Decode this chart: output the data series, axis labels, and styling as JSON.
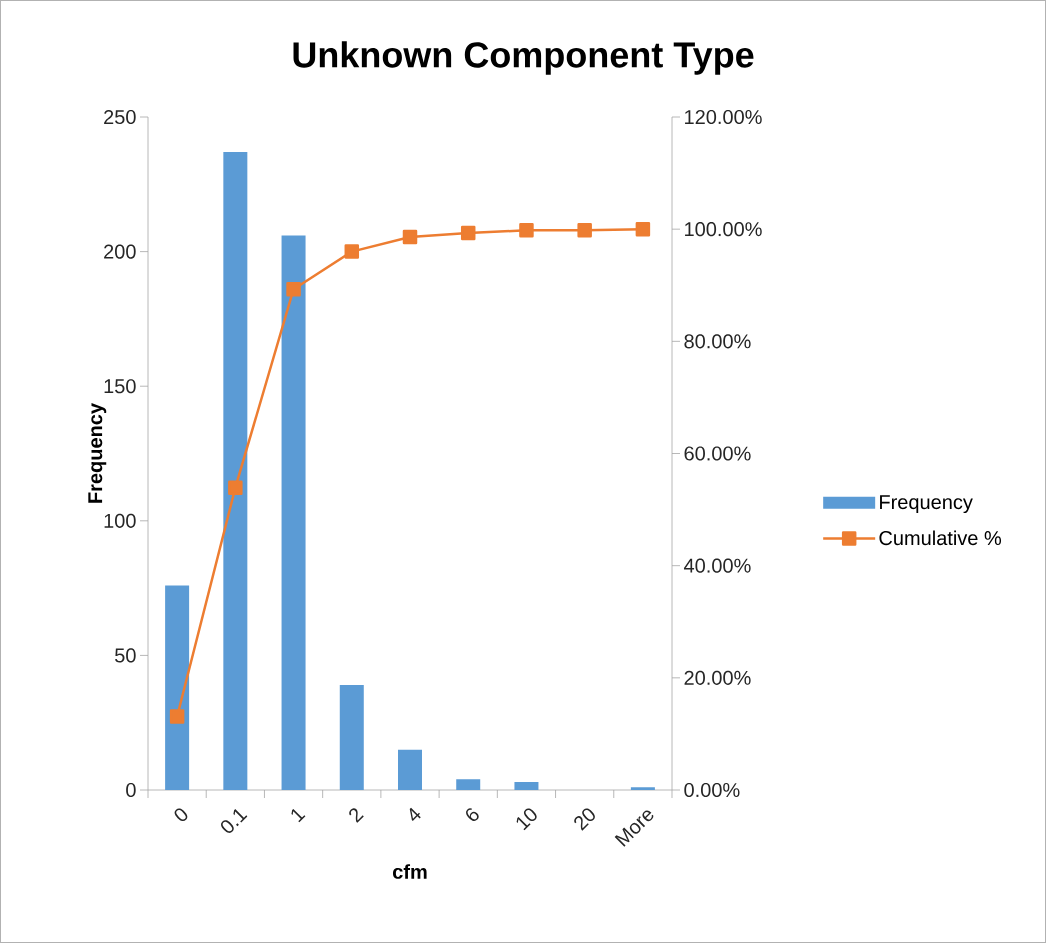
{
  "chart_data": {
    "type": "bar",
    "title": "Unknown Component Type",
    "xlabel": "cfm",
    "ylabel": "Frequency",
    "categories": [
      "0",
      "0.1",
      "1",
      "2",
      "4",
      "6",
      "10",
      "20",
      "More"
    ],
    "series": [
      {
        "name": "Frequency",
        "color": "#5b9bd5",
        "values": [
          76,
          237,
          206,
          39,
          15,
          4,
          3,
          0,
          1
        ]
      },
      {
        "name": "Cumulative %",
        "type": "line",
        "axis": "y2",
        "color": "#ed7d31",
        "marker": "square",
        "values": [
          13.1,
          53.9,
          89.3,
          96.0,
          98.6,
          99.3,
          99.8,
          99.8,
          100
        ]
      }
    ],
    "ylim": [
      0,
      250
    ],
    "yticks": [
      0,
      50,
      100,
      150,
      200,
      250
    ],
    "y2lim": [
      0,
      120
    ],
    "y2ticks": [
      {
        "value": 0,
        "label": "0.00%"
      },
      {
        "value": 20,
        "label": "20.00%"
      },
      {
        "value": 40,
        "label": "40.00%"
      },
      {
        "value": 60,
        "label": "60.00%"
      },
      {
        "value": 80,
        "label": "80.00%"
      },
      {
        "value": 100,
        "label": "100.00%"
      },
      {
        "value": 120,
        "label": "120.00%"
      }
    ],
    "grid": false,
    "legend": "right"
  }
}
